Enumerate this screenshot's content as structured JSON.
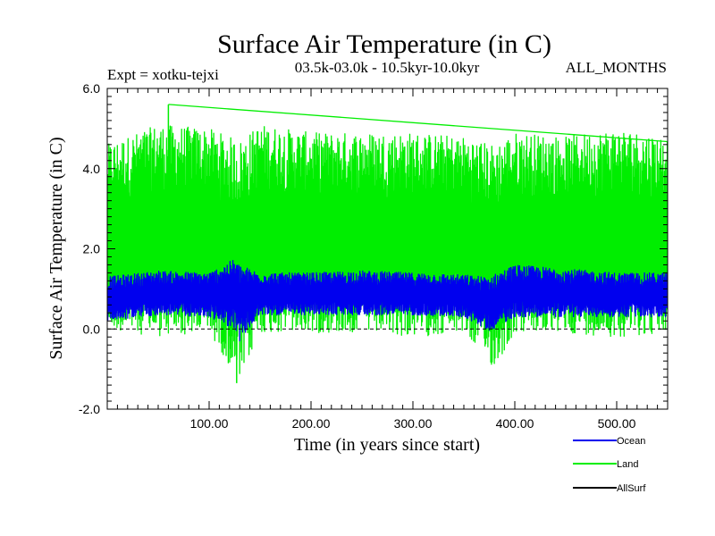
{
  "chart_data": {
    "type": "line",
    "title": "Surface Air Temperature (in C)",
    "subtitle_left": "Expt = xotku-tejxi",
    "subtitle_center": "03.5k-03.0k - 10.5kyr-10.0kyr",
    "subtitle_right": "ALL_MONTHS",
    "xlabel": "Time (in years since start)",
    "ylabel": "Surface Air Temperature (in C)",
    "xlim": [
      0,
      550
    ],
    "ylim": [
      -2.0,
      6.0
    ],
    "x_ticks": [
      100,
      200,
      300,
      400,
      500
    ],
    "x_tick_labels": [
      "100.00",
      "200.00",
      "300.00",
      "400.00",
      "500.00"
    ],
    "y_ticks": [
      -2,
      0,
      2,
      4,
      6
    ],
    "y_tick_labels": [
      "-2.0",
      "0.0",
      "2.0",
      "4.0",
      "6.0"
    ],
    "zero_line": 0,
    "series": [
      {
        "name": "Land",
        "color": "#00ee00",
        "band_x": [
          0,
          50,
          100,
          130,
          150,
          200,
          250,
          300,
          350,
          380,
          400,
          450,
          500,
          550
        ],
        "band_low": [
          0.0,
          -0.2,
          -0.1,
          -1.3,
          -0.1,
          -0.1,
          -0.1,
          -0.2,
          -0.1,
          -1.0,
          -0.1,
          -0.1,
          -0.2,
          -0.1
        ],
        "band_high": [
          4.6,
          5.1,
          5.0,
          4.7,
          5.1,
          4.9,
          4.9,
          4.9,
          4.8,
          4.6,
          4.9,
          4.8,
          5.0,
          4.8
        ],
        "max_point": [
          60,
          5.6
        ],
        "min_point": [
          127,
          -1.35
        ]
      },
      {
        "name": "Ocean",
        "color": "#0000ee",
        "band_x": [
          0,
          50,
          100,
          125,
          130,
          150,
          200,
          250,
          300,
          350,
          375,
          400,
          450,
          500,
          550
        ],
        "band_low": [
          0.2,
          0.35,
          0.3,
          0.0,
          -0.3,
          0.35,
          0.35,
          0.35,
          0.35,
          0.3,
          -0.05,
          0.3,
          0.3,
          0.3,
          0.3
        ],
        "band_high": [
          1.3,
          1.45,
          1.4,
          1.75,
          1.6,
          1.4,
          1.4,
          1.45,
          1.4,
          1.35,
          1.3,
          1.6,
          1.5,
          1.4,
          1.4
        ]
      },
      {
        "name": "AllSurf",
        "color": "#000000",
        "band_x": [],
        "band_low": [],
        "band_high": []
      }
    ],
    "legend": [
      {
        "name": "Ocean",
        "color": "#0000ee"
      },
      {
        "name": "Land",
        "color": "#00ee00"
      },
      {
        "name": "AllSurf",
        "color": "#000000"
      }
    ],
    "legend_position": "bottom-right"
  }
}
